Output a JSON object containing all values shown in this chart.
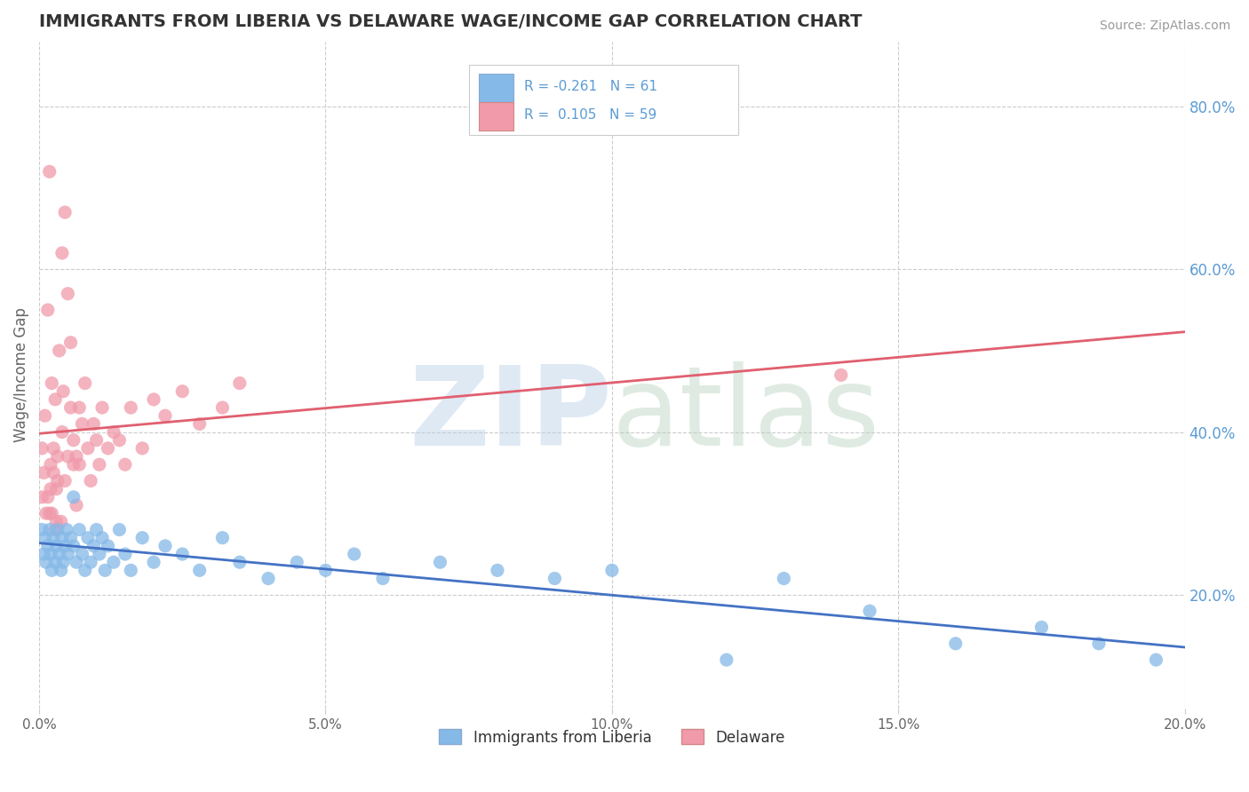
{
  "title": "IMMIGRANTS FROM LIBERIA VS DELAWARE WAGE/INCOME GAP CORRELATION CHART",
  "source": "Source: ZipAtlas.com",
  "ylabel": "Wage/Income Gap",
  "xlim": [
    0.0,
    20.0
  ],
  "ylim": [
    0.06,
    0.88
  ],
  "xticks": [
    0.0,
    5.0,
    10.0,
    15.0,
    20.0
  ],
  "xtick_labels": [
    "0.0%",
    "5.0%",
    "10.0%",
    "15.0%",
    "20.0%"
  ],
  "yticks": [
    0.2,
    0.4,
    0.6,
    0.8
  ],
  "ytick_labels": [
    "20.0%",
    "40.0%",
    "60.0%",
    "80.0%"
  ],
  "watermark": "ZIPatlas",
  "blue_series": {
    "name": "Immigrants from Liberia",
    "R": -0.261,
    "N": 61,
    "x": [
      0.05,
      0.08,
      0.1,
      0.12,
      0.15,
      0.18,
      0.2,
      0.22,
      0.25,
      0.28,
      0.3,
      0.32,
      0.35,
      0.38,
      0.4,
      0.42,
      0.45,
      0.48,
      0.5,
      0.55,
      0.6,
      0.65,
      0.7,
      0.75,
      0.8,
      0.85,
      0.9,
      0.95,
      1.0,
      1.05,
      1.1,
      1.15,
      1.2,
      1.3,
      1.4,
      1.5,
      1.6,
      1.8,
      2.0,
      2.2,
      2.5,
      2.8,
      3.2,
      3.5,
      4.0,
      4.5,
      5.0,
      5.5,
      6.0,
      7.0,
      8.0,
      9.0,
      10.0,
      12.0,
      13.0,
      14.5,
      16.0,
      17.5,
      18.5,
      19.5,
      0.6
    ],
    "y": [
      0.28,
      0.25,
      0.27,
      0.24,
      0.26,
      0.28,
      0.25,
      0.23,
      0.27,
      0.24,
      0.26,
      0.28,
      0.25,
      0.23,
      0.27,
      0.24,
      0.26,
      0.28,
      0.25,
      0.27,
      0.26,
      0.24,
      0.28,
      0.25,
      0.23,
      0.27,
      0.24,
      0.26,
      0.28,
      0.25,
      0.27,
      0.23,
      0.26,
      0.24,
      0.28,
      0.25,
      0.23,
      0.27,
      0.24,
      0.26,
      0.25,
      0.23,
      0.27,
      0.24,
      0.22,
      0.24,
      0.23,
      0.25,
      0.22,
      0.24,
      0.23,
      0.22,
      0.23,
      0.12,
      0.22,
      0.18,
      0.14,
      0.16,
      0.14,
      0.12,
      0.32
    ]
  },
  "pink_series": {
    "name": "Delaware",
    "R": 0.105,
    "N": 59,
    "x": [
      0.05,
      0.05,
      0.08,
      0.1,
      0.12,
      0.15,
      0.18,
      0.2,
      0.22,
      0.25,
      0.28,
      0.3,
      0.32,
      0.35,
      0.38,
      0.4,
      0.42,
      0.45,
      0.5,
      0.55,
      0.6,
      0.65,
      0.7,
      0.75,
      0.8,
      0.85,
      0.9,
      0.95,
      1.0,
      1.05,
      1.1,
      1.2,
      1.3,
      1.4,
      1.5,
      1.6,
      1.8,
      2.0,
      2.2,
      2.5,
      2.8,
      3.2,
      3.5,
      0.4,
      0.45,
      0.5,
      0.55,
      0.6,
      0.65,
      0.7,
      0.15,
      0.18,
      0.2,
      0.22,
      0.25,
      0.28,
      0.3,
      0.32,
      14.0
    ],
    "y": [
      0.32,
      0.38,
      0.35,
      0.42,
      0.3,
      0.55,
      0.72,
      0.36,
      0.46,
      0.38,
      0.44,
      0.33,
      0.37,
      0.5,
      0.29,
      0.4,
      0.45,
      0.34,
      0.37,
      0.43,
      0.39,
      0.31,
      0.36,
      0.41,
      0.46,
      0.38,
      0.34,
      0.41,
      0.39,
      0.36,
      0.43,
      0.38,
      0.4,
      0.39,
      0.36,
      0.43,
      0.38,
      0.44,
      0.42,
      0.45,
      0.41,
      0.43,
      0.46,
      0.62,
      0.67,
      0.57,
      0.51,
      0.36,
      0.37,
      0.43,
      0.32,
      0.3,
      0.33,
      0.3,
      0.35,
      0.28,
      0.29,
      0.34,
      0.47
    ]
  },
  "background_color": "#ffffff",
  "grid_color": "#cccccc",
  "title_color": "#333333",
  "axis_label_color": "#666666",
  "tick_color": "#666666",
  "source_color": "#999999",
  "blue_dot_color": "#85b9e8",
  "pink_dot_color": "#f09aaa",
  "blue_line_color": "#4472c4",
  "pink_line_color": "#e06070",
  "bottom_legend_blue": "Immigrants from Liberia",
  "bottom_legend_pink": "Delaware"
}
